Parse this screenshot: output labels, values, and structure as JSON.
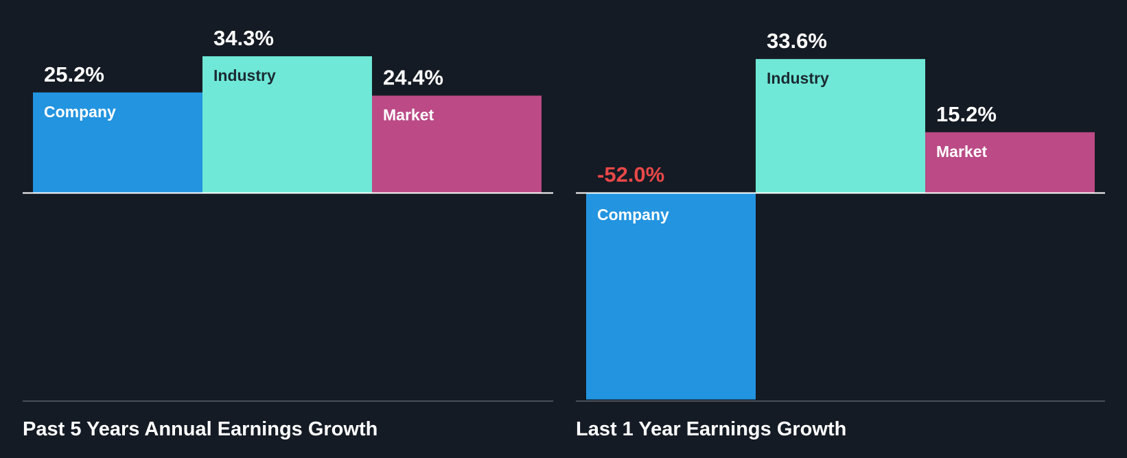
{
  "colors": {
    "background": "#151b24",
    "company": "#2394e0",
    "industry": "#6fe8d7",
    "market": "#bb4a86",
    "label_on_dark_bar": "#ffffff",
    "label_on_light_bar": "#1b2b33",
    "value_positive": "#ffffff",
    "value_negative": "#e84848",
    "zero_line": "#ffffff",
    "bottom_line": "#4a5059"
  },
  "chart_data": [
    {
      "type": "bar",
      "title": "Past 5 Years Annual Earnings Growth",
      "categories": [
        "Company",
        "Industry",
        "Market"
      ],
      "values": [
        25.2,
        34.3,
        24.4
      ],
      "value_labels": [
        "25.2%",
        "34.3%",
        "24.4%"
      ],
      "ylim": [
        -52.0,
        34.3
      ]
    },
    {
      "type": "bar",
      "title": "Last 1 Year Earnings Growth",
      "categories": [
        "Company",
        "Industry",
        "Market"
      ],
      "values": [
        -52.0,
        33.6,
        15.2
      ],
      "value_labels": [
        "-52.0%",
        "33.6%",
        "15.2%"
      ],
      "ylim": [
        -52.0,
        34.3
      ]
    }
  ]
}
